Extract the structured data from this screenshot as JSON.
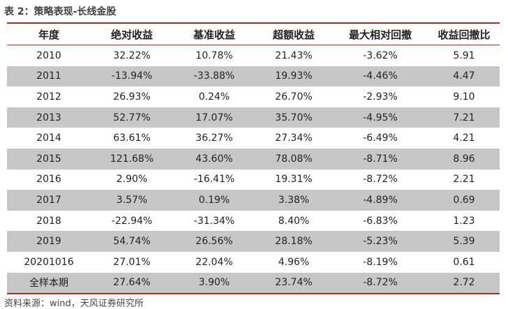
{
  "title": "表 2：策略表现-长线金股",
  "columns": [
    "年度",
    "绝对收益",
    "基准收益",
    "超额收益",
    "最大相对回撤",
    "收益回撤比"
  ],
  "rows": [
    [
      "2010",
      "32.22%",
      "10.78%",
      "21.43%",
      "-3.62%",
      "5.91"
    ],
    [
      "2011",
      "-13.94%",
      "-33.88%",
      "19.93%",
      "-4.46%",
      "4.47"
    ],
    [
      "2012",
      "26.93%",
      "0.24%",
      "26.70%",
      "-2.93%",
      "9.10"
    ],
    [
      "2013",
      "52.77%",
      "17.07%",
      "35.70%",
      "-4.95%",
      "7.21"
    ],
    [
      "2014",
      "63.61%",
      "36.27%",
      "27.34%",
      "-6.49%",
      "4.21"
    ],
    [
      "2015",
      "121.68%",
      "43.60%",
      "78.08%",
      "-8.71%",
      "8.96"
    ],
    [
      "2016",
      "2.90%",
      "-16.41%",
      "19.31%",
      "-8.72%",
      "2.21"
    ],
    [
      "2017",
      "3.57%",
      "0.19%",
      "3.38%",
      "-4.89%",
      "0.69"
    ],
    [
      "2018",
      "-22.94%",
      "-31.34%",
      "8.40%",
      "-6.83%",
      "1.23"
    ],
    [
      "2019",
      "54.74%",
      "26.56%",
      "28.18%",
      "-5.23%",
      "5.39"
    ],
    [
      "20201016",
      "27.01%",
      "22.04%",
      "4.96%",
      "-8.19%",
      "0.61"
    ],
    [
      "全样本期",
      "27.64%",
      "3.90%",
      "23.74%",
      "-8.72%",
      "2.72"
    ]
  ],
  "source": "资料来源：wind，天风证券研究所"
}
